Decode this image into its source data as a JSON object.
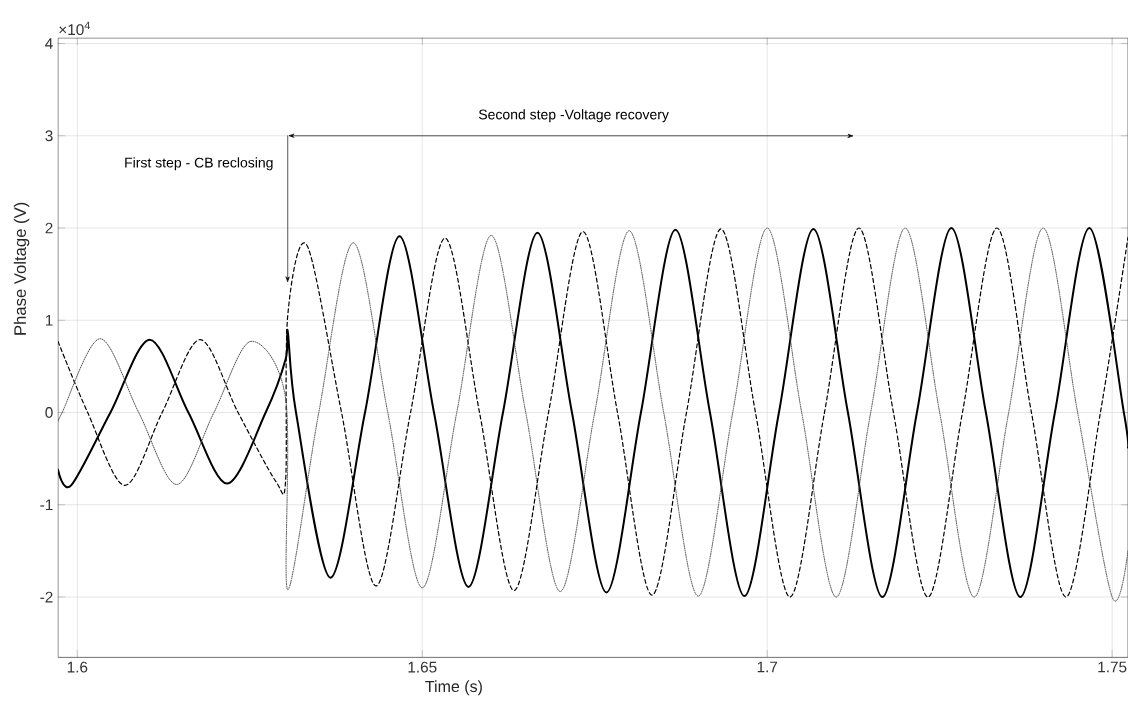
{
  "chart_data": {
    "type": "line",
    "xlabel": "Time (s)",
    "ylabel": "Phase Voltage (V)",
    "xlim": [
      1.5972,
      1.7523
    ],
    "ylim": [
      -2.65,
      4.06
    ],
    "xticks": [
      1.6,
      1.65,
      1.7,
      1.75
    ],
    "yticks": [
      -2,
      -1,
      0,
      1,
      2,
      3,
      4
    ],
    "grid": true,
    "annotations": [
      "First step - CB reclosing",
      "Second step -Voltage recovery",
      "×10$^{4}$"
    ],
    "series": [
      {
        "color": "#000000",
        "line_style": "solid",
        "x": [
          1.5972,
          1.5991,
          1.6048,
          1.6105,
          1.6161,
          1.6217,
          1.6273,
          1.6302,
          1.6305,
          1.6317,
          1.6367,
          1.6417,
          1.6467,
          1.6517,
          1.6567,
          1.6617,
          1.6667,
          1.6717,
          1.6767,
          1.6817,
          1.6867,
          1.6917,
          1.6967,
          1.7017,
          1.7067,
          1.7117,
          1.7167,
          1.7217,
          1.7267,
          1.7317,
          1.7367,
          1.7417,
          1.7467,
          1.7517,
          1.7523
        ],
        "values": [
          -0.62,
          -0.79,
          0,
          0.79,
          0,
          -0.77,
          0,
          0.58,
          0.88,
          0,
          -1.79,
          0,
          1.91,
          0,
          -1.89,
          0,
          1.95,
          0,
          -1.95,
          0,
          1.98,
          0,
          -1.99,
          0,
          1.99,
          0,
          -2.0,
          0,
          2.0,
          0,
          -2.0,
          0,
          2.0,
          0,
          -0.38
        ]
      },
      {
        "color": "#000000",
        "line_style": "dashed",
        "x": [
          1.5972,
          1.6015,
          1.6069,
          1.6123,
          1.6178,
          1.6233,
          1.6288,
          1.6302,
          1.6305,
          1.6333,
          1.6383,
          1.6433,
          1.6483,
          1.6533,
          1.6583,
          1.6633,
          1.6683,
          1.6733,
          1.6783,
          1.6833,
          1.6883,
          1.6933,
          1.6983,
          1.7033,
          1.7083,
          1.7133,
          1.7183,
          1.7233,
          1.7283,
          1.7333,
          1.7383,
          1.7433,
          1.7483,
          1.7523
        ],
        "values": [
          0.77,
          0,
          -0.79,
          0,
          0.79,
          0,
          -0.75,
          -0.73,
          1.05,
          1.81,
          0,
          -1.88,
          0,
          1.89,
          0,
          -1.93,
          0,
          1.96,
          0,
          -1.98,
          0,
          1.99,
          0,
          -2.0,
          0,
          2.0,
          0,
          -2.0,
          0,
          2.0,
          0,
          -2.0,
          0,
          1.9
        ]
      },
      {
        "color": "#404040",
        "line_style": "dotted",
        "x": [
          1.5972,
          1.5978,
          1.6033,
          1.6089,
          1.6144,
          1.6198,
          1.6251,
          1.6302,
          1.6305,
          1.635,
          1.64,
          1.645,
          1.65,
          1.655,
          1.66,
          1.665,
          1.67,
          1.675,
          1.68,
          1.685,
          1.69,
          1.695,
          1.7,
          1.705,
          1.71,
          1.715,
          1.72,
          1.725,
          1.73,
          1.735,
          1.74,
          1.745,
          1.75,
          1.7523
        ],
        "values": [
          -0.1,
          0,
          0.8,
          0,
          -0.78,
          0,
          0.77,
          0.15,
          -1.92,
          0,
          1.84,
          0,
          -1.9,
          0,
          1.92,
          0,
          -1.94,
          0,
          1.97,
          0,
          -1.99,
          0,
          2.0,
          0,
          -2.0,
          0,
          2.0,
          0,
          -2.0,
          0,
          2.0,
          0,
          -2.0,
          -1.5
        ]
      }
    ]
  }
}
